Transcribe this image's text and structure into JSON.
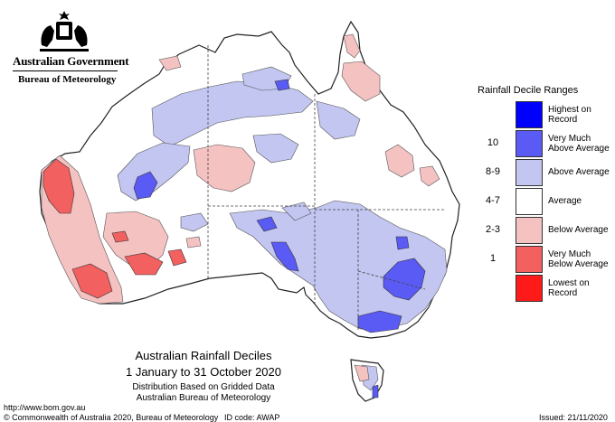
{
  "header": {
    "government": "Australian Government",
    "agency": "Bureau of Meteorology"
  },
  "legend": {
    "title": "Rainfall Decile Ranges",
    "items": [
      {
        "range": "",
        "label_1": "Highest on",
        "label_2": "Record",
        "color": "#0000ff"
      },
      {
        "range": "10",
        "label_1": "Very Much",
        "label_2": "Above Average",
        "color": "#5a5af5"
      },
      {
        "range": "8-9",
        "label_1": "Above Average",
        "label_2": "",
        "color": "#c2c6f0"
      },
      {
        "range": "4-7",
        "label_1": "Average",
        "label_2": "",
        "color": "#ffffff"
      },
      {
        "range": "2-3",
        "label_1": "Below Average",
        "label_2": "",
        "color": "#f5c2c2"
      },
      {
        "range": "1",
        "label_1": "Very Much",
        "label_2": "Below Average",
        "color": "#f26060"
      },
      {
        "range": "",
        "label_1": "Lowest on",
        "label_2": "Record",
        "color": "#ff1a1a"
      }
    ]
  },
  "caption": {
    "title": "Australian Rainfall Deciles",
    "period": "1 January to 31 October 2020",
    "note": "Distribution Based on Gridded Data",
    "source": "Australian Bureau of Meteorology"
  },
  "footer": {
    "url": "http://www.bom.gov.au",
    "copyright": "© Commonwealth of Australia 2020, Bureau of Meteorology",
    "id_code": "ID code: AWAP",
    "issued": "Issued: 21/11/2020"
  },
  "colors": {
    "average": "#ffffff",
    "above": "#c2c6f0",
    "very_much_above": "#5a5af5",
    "below": "#f5c2c2",
    "very_much_below": "#f26060",
    "outline": "#222222",
    "border": "#555555"
  }
}
